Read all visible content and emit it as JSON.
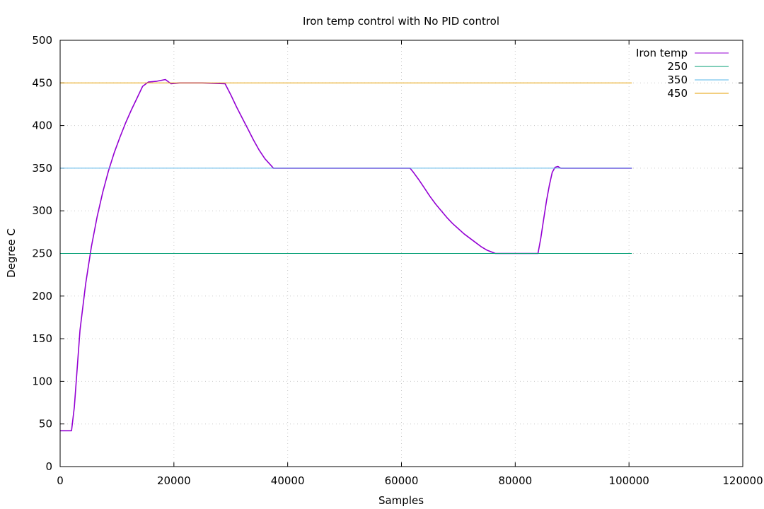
{
  "chart_data": {
    "type": "line",
    "title": "Iron temp control with No PID control",
    "xlabel": "Samples",
    "ylabel": "Degree C",
    "xlim": [
      0,
      120000
    ],
    "ylim": [
      0,
      500
    ],
    "xticks": [
      "0",
      "20000",
      "40000",
      "60000",
      "80000",
      "100000",
      "120000"
    ],
    "yticks": [
      "0",
      "50",
      "100",
      "150",
      "200",
      "250",
      "300",
      "350",
      "400",
      "450",
      "500"
    ],
    "grid": true,
    "legend_position": "top-right",
    "series": [
      {
        "name": "Iron temp",
        "color": "#9400d3",
        "x": [
          0,
          2000,
          2500,
          3500,
          4500,
          5500,
          6500,
          7500,
          8500,
          9500,
          10500,
          11500,
          12500,
          13500,
          14500,
          15500,
          17000,
          18500,
          19500,
          21000,
          25000,
          29000,
          30000,
          31000,
          32000,
          33000,
          34000,
          35000,
          36000,
          37500,
          40000,
          45000,
          50000,
          55000,
          61500,
          62000,
          63000,
          64000,
          65000,
          66000,
          67000,
          68000,
          69000,
          70000,
          71000,
          72000,
          73000,
          74000,
          75000,
          76500,
          80000,
          84000,
          84500,
          85000,
          85500,
          86000,
          86500,
          87000,
          87500,
          88000,
          90000,
          95000,
          100500
        ],
        "values": [
          42,
          42,
          70,
          160,
          215,
          258,
          293,
          322,
          347,
          368,
          386,
          403,
          418,
          432,
          446,
          451,
          452,
          454,
          449,
          450,
          450,
          449,
          436,
          422,
          409,
          396,
          383,
          371,
          361,
          350,
          350,
          350,
          350,
          350,
          350,
          346,
          337,
          327,
          317,
          308,
          300,
          292,
          285,
          279,
          273,
          268,
          263,
          258,
          254,
          250,
          250,
          250,
          268,
          290,
          312,
          330,
          345,
          351,
          352,
          350,
          350,
          350,
          350
        ]
      },
      {
        "name": "250",
        "color": "#009e73",
        "x": [
          0,
          100500
        ],
        "values": [
          250,
          250
        ]
      },
      {
        "name": "350",
        "color": "#56b4e9",
        "x": [
          0,
          100500
        ],
        "values": [
          350,
          350
        ]
      },
      {
        "name": "450",
        "color": "#e69f00",
        "x": [
          0,
          100500
        ],
        "values": [
          450,
          450
        ]
      }
    ]
  }
}
